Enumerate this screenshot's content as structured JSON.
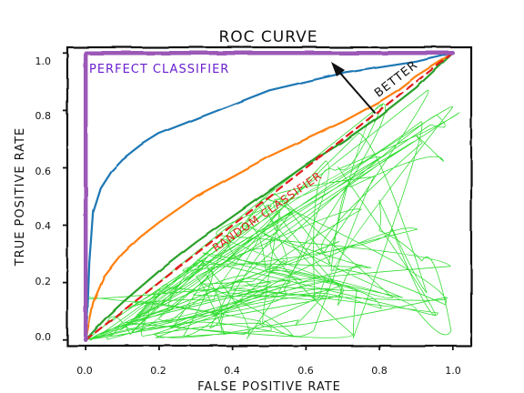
{
  "chart_data": {
    "type": "line",
    "title": "ROC CURVE",
    "xlabel": "FALSE POSITIVE RATE",
    "ylabel": "TRUE POSITIVE RATE",
    "xlim": [
      -0.05,
      1.05
    ],
    "ylim": [
      -0.02,
      1.02
    ],
    "x_ticks": [
      "0.0",
      "0.2",
      "0.4",
      "0.6",
      "0.8",
      "1.0"
    ],
    "y_ticks": [
      "0.0",
      "0.2",
      "0.4",
      "0.6",
      "0.8",
      "1.0"
    ],
    "grid": false,
    "legend": "none",
    "style": "xkcd",
    "series": [
      {
        "name": "PERFECT CLASSIFIER",
        "color": "#9b59b6",
        "x": [
          0.0,
          0.0,
          1.0
        ],
        "y": [
          0.0,
          1.0,
          1.0
        ]
      },
      {
        "color": "#1f77b4",
        "x": [
          0.0,
          0.005,
          0.01,
          0.02,
          0.04,
          0.07,
          0.1,
          0.15,
          0.2,
          0.3,
          0.4,
          0.5,
          0.6,
          0.7,
          0.8,
          0.9,
          1.0
        ],
        "y": [
          0.0,
          0.1,
          0.27,
          0.45,
          0.53,
          0.59,
          0.63,
          0.68,
          0.72,
          0.77,
          0.82,
          0.87,
          0.9,
          0.93,
          0.95,
          0.97,
          1.0
        ]
      },
      {
        "color": "#ff7f0e",
        "x": [
          0.0,
          0.02,
          0.05,
          0.1,
          0.15,
          0.2,
          0.3,
          0.4,
          0.5,
          0.6,
          0.7,
          0.8,
          0.85,
          0.9,
          1.0
        ],
        "y": [
          0.0,
          0.13,
          0.22,
          0.3,
          0.36,
          0.41,
          0.5,
          0.57,
          0.64,
          0.7,
          0.76,
          0.83,
          0.87,
          0.92,
          1.0
        ]
      },
      {
        "color": "#2ca02c",
        "x": [
          0.0,
          0.05,
          0.1,
          0.2,
          0.3,
          0.4,
          0.5,
          0.6,
          0.7,
          0.8,
          0.9,
          1.0
        ],
        "y": [
          0.0,
          0.07,
          0.13,
          0.24,
          0.34,
          0.43,
          0.52,
          0.61,
          0.69,
          0.78,
          0.88,
          1.0
        ]
      },
      {
        "name": "RANDOM CLASSIFIER",
        "color": "#e31a1c",
        "dashed": true,
        "x": [
          0.0,
          1.0
        ],
        "y": [
          0.0,
          1.0
        ]
      }
    ],
    "annotations": [
      {
        "text": "PERFECT CLASSIFIER",
        "color": "#6a1fd0"
      },
      {
        "text": "RANDOM CLASSIFIER",
        "color": "#e31a1c"
      },
      {
        "text": "BETTER",
        "color": "#111111"
      }
    ],
    "noise_color": "#33dd33"
  }
}
